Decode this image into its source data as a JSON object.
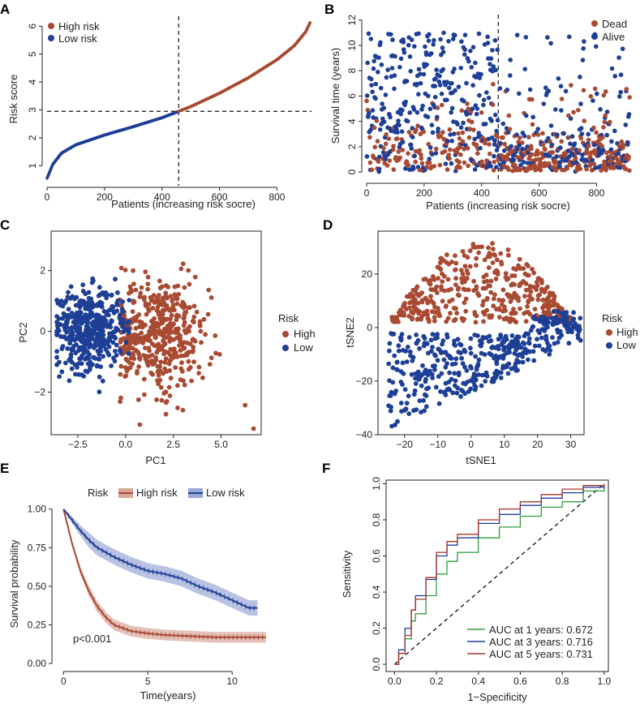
{
  "colors": {
    "high": "#A94A32",
    "low": "#1D3F96",
    "auc1": "#2E9E3E",
    "auc3": "#1F3FA0",
    "auc5": "#A8332A",
    "ribbon_high": "#D8A79B",
    "ribbon_low": "#9AA8D6"
  },
  "chart_data": [
    {
      "panel": "A",
      "type": "scatter",
      "title": "",
      "xlabel": "Patients (increasing risk socre)",
      "ylabel": "Risk score",
      "xlim": [
        0,
        920
      ],
      "ylim": [
        0.4,
        6.3
      ],
      "xticks": [
        0,
        200,
        400,
        600,
        800
      ],
      "yticks": [
        1,
        2,
        3,
        4,
        5,
        6
      ],
      "cutoff_x": 458,
      "cutoff_y": 2.95,
      "n": 916,
      "curve_points": [
        [
          0,
          0.55
        ],
        [
          20,
          1.05
        ],
        [
          50,
          1.45
        ],
        [
          100,
          1.75
        ],
        [
          200,
          2.1
        ],
        [
          300,
          2.4
        ],
        [
          400,
          2.72
        ],
        [
          458,
          2.95
        ],
        [
          500,
          3.12
        ],
        [
          600,
          3.6
        ],
        [
          700,
          4.15
        ],
        [
          800,
          4.8
        ],
        [
          860,
          5.3
        ],
        [
          900,
          5.8
        ],
        [
          916,
          6.15
        ]
      ],
      "legend": [
        "High risk",
        "Low risk"
      ]
    },
    {
      "panel": "B",
      "type": "scatter",
      "xlabel": "Patients (increasing risk socre)",
      "ylabel": "Survival time (years)",
      "xlim": [
        0,
        920
      ],
      "ylim": [
        -0.5,
        12.3
      ],
      "xticks": [
        0,
        200,
        400,
        600,
        800
      ],
      "yticks": [
        0,
        2,
        4,
        6,
        8,
        10,
        12
      ],
      "cutoff_x": 458,
      "n": 916,
      "legend": [
        "Dead",
        "Alive"
      ]
    },
    {
      "panel": "C",
      "type": "scatter",
      "xlabel": "PC1",
      "ylabel": "PC2",
      "xlim": [
        -3.9,
        7.1
      ],
      "ylim": [
        -3.4,
        3.3
      ],
      "xticks": [
        -2.5,
        0.0,
        2.5,
        5.0
      ],
      "xtick_labels": [
        "−2.5",
        "0.0",
        "2.5",
        "5.0"
      ],
      "yticks": [
        -2,
        0,
        2
      ],
      "ytick_labels": [
        "−2",
        "0",
        "2"
      ],
      "legend_title": "Risk",
      "legend": [
        "High",
        "Low"
      ],
      "groups": [
        {
          "name": "High",
          "center": [
            1.8,
            -0.1
          ],
          "spread": [
            1.3,
            0.95
          ]
        },
        {
          "name": "Low",
          "center": [
            -1.9,
            0.1
          ],
          "spread": [
            0.9,
            0.65
          ]
        }
      ],
      "outlier": [
        6.7,
        -3.2
      ]
    },
    {
      "panel": "D",
      "type": "scatter",
      "xlabel": "tSNE1",
      "ylabel": "tSNE2",
      "xlim": [
        -28,
        34
      ],
      "ylim": [
        -40,
        36
      ],
      "xticks": [
        -20,
        -10,
        0,
        10,
        20,
        30
      ],
      "xtick_labels": [
        "−20",
        "−10",
        "0",
        "10",
        "20",
        "30"
      ],
      "yticks": [
        -40,
        -20,
        0,
        20
      ],
      "ytick_labels": [
        "−40",
        "−20",
        "0",
        "20"
      ],
      "legend_title": "Risk",
      "legend": [
        "High",
        "Low"
      ]
    },
    {
      "panel": "E",
      "type": "line",
      "xlabel": "Time(years)",
      "ylabel": "Survival probability",
      "xlim": [
        -0.4,
        12.3
      ],
      "ylim": [
        -0.02,
        1.03
      ],
      "xticks": [
        0,
        5,
        10
      ],
      "yticks": [
        0.0,
        0.25,
        0.5,
        0.75,
        1.0
      ],
      "ytick_labels": [
        "0.00",
        "0.25",
        "0.50",
        "0.75",
        "1.00"
      ],
      "legend_title": "Risk",
      "legend": [
        "High risk",
        "Low risk"
      ],
      "annotation": "p<0.001",
      "series": [
        {
          "name": "High risk",
          "x": [
            0,
            0.5,
            1,
            1.5,
            2,
            2.5,
            3,
            4,
            5,
            6,
            7,
            8,
            9,
            10,
            11,
            12
          ],
          "y": [
            1.0,
            0.78,
            0.6,
            0.47,
            0.37,
            0.3,
            0.25,
            0.21,
            0.195,
            0.185,
            0.18,
            0.175,
            0.17,
            0.17,
            0.17,
            0.17
          ],
          "band": 0.035
        },
        {
          "name": "Low risk",
          "x": [
            0,
            0.5,
            1,
            1.5,
            2,
            3,
            4,
            5,
            6,
            7,
            8,
            9,
            10,
            11,
            11.5
          ],
          "y": [
            1.0,
            0.93,
            0.86,
            0.8,
            0.75,
            0.69,
            0.64,
            0.6,
            0.58,
            0.55,
            0.5,
            0.46,
            0.41,
            0.36,
            0.36
          ],
          "band": 0.05
        }
      ]
    },
    {
      "panel": "F",
      "type": "line",
      "xlabel": "1−Specificity",
      "ylabel": "Sensitivity",
      "xlim": [
        -0.04,
        1.02
      ],
      "ylim": [
        -0.04,
        1.02
      ],
      "xticks": [
        0.0,
        0.2,
        0.4,
        0.6,
        0.8,
        1.0
      ],
      "yticks": [
        0.0,
        0.2,
        0.4,
        0.6,
        0.8,
        1.0
      ],
      "tick_labels": [
        "0.0",
        "0.2",
        "0.4",
        "0.6",
        "0.8",
        "1.0"
      ],
      "series": [
        {
          "name": "AUC at 1 years: 0.672",
          "x": [
            0,
            0.02,
            0.05,
            0.08,
            0.1,
            0.15,
            0.2,
            0.25,
            0.3,
            0.4,
            0.5,
            0.6,
            0.7,
            0.8,
            0.9,
            1.0
          ],
          "y": [
            0,
            0.06,
            0.14,
            0.24,
            0.28,
            0.38,
            0.5,
            0.57,
            0.62,
            0.7,
            0.76,
            0.82,
            0.87,
            0.9,
            0.96,
            1.0
          ]
        },
        {
          "name": "AUC at 3 years: 0.716",
          "x": [
            0,
            0.02,
            0.05,
            0.08,
            0.1,
            0.15,
            0.2,
            0.25,
            0.3,
            0.4,
            0.5,
            0.6,
            0.7,
            0.8,
            0.9,
            1.0
          ],
          "y": [
            0,
            0.08,
            0.2,
            0.3,
            0.38,
            0.47,
            0.6,
            0.66,
            0.7,
            0.78,
            0.83,
            0.88,
            0.92,
            0.95,
            0.98,
            1.0
          ]
        },
        {
          "name": "AUC at 5 years: 0.731",
          "x": [
            0,
            0.02,
            0.05,
            0.08,
            0.1,
            0.15,
            0.2,
            0.25,
            0.3,
            0.4,
            0.5,
            0.6,
            0.7,
            0.8,
            0.9,
            1.0
          ],
          "y": [
            0,
            0.06,
            0.16,
            0.3,
            0.36,
            0.48,
            0.62,
            0.68,
            0.72,
            0.8,
            0.86,
            0.9,
            0.94,
            0.97,
            0.99,
            1.0
          ]
        }
      ]
    }
  ]
}
